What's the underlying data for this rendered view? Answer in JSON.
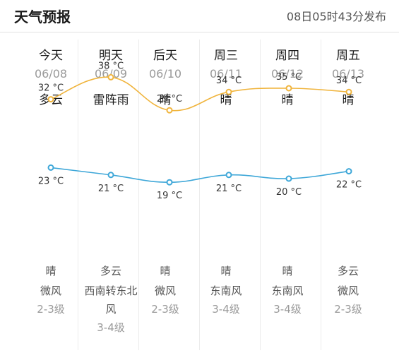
{
  "header": {
    "title": "天气预报",
    "publish_time": "08日05时43分发布"
  },
  "colors": {
    "high_line": "#f0b43c",
    "low_line": "#3ea7d8",
    "divider": "#ececec"
  },
  "days": [
    {
      "day": "今天",
      "date": "06/08",
      "weather": "多云",
      "high": "32 °C",
      "low": "23 °C",
      "night_weather": "晴",
      "wind_dir": "微风",
      "wind_level": "2-3级"
    },
    {
      "day": "明天",
      "date": "06/09",
      "weather": "雷阵雨",
      "high": "38 °C",
      "low": "21 °C",
      "night_weather": "多云",
      "wind_dir": "西南转东北风",
      "wind_level": "3-4级"
    },
    {
      "day": "后天",
      "date": "06/10",
      "weather": "晴",
      "high": "29 °C",
      "low": "19 °C",
      "night_weather": "晴",
      "wind_dir": "微风",
      "wind_level": "2-3级"
    },
    {
      "day": "周三",
      "date": "06/11",
      "weather": "晴",
      "high": "34 °C",
      "low": "21 °C",
      "night_weather": "晴",
      "wind_dir": "东南风",
      "wind_level": "3-4级"
    },
    {
      "day": "周四",
      "date": "06/12",
      "weather": "晴",
      "high": "35 °C",
      "low": "20 °C",
      "night_weather": "晴",
      "wind_dir": "东南风",
      "wind_level": "3-4级"
    },
    {
      "day": "周五",
      "date": "06/13",
      "weather": "晴",
      "high": "34 °C",
      "low": "22 °C",
      "night_weather": "多云",
      "wind_dir": "微风",
      "wind_level": "2-3级"
    }
  ],
  "chart_data": {
    "type": "line",
    "categories": [
      "今天",
      "明天",
      "后天",
      "周三",
      "周四",
      "周五"
    ],
    "series": [
      {
        "values": [
          32,
          38,
          29,
          34,
          35,
          34
        ]
      },
      {
        "values": [
          23,
          21,
          19,
          21,
          20,
          22
        ]
      }
    ],
    "unit": "°C"
  }
}
